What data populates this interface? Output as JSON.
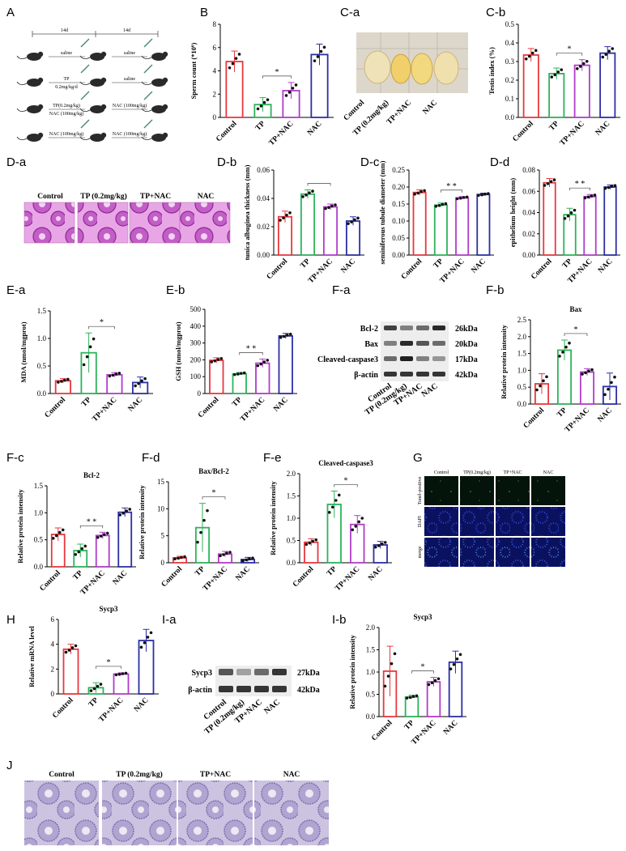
{
  "panels": {
    "A": "A",
    "B": "B",
    "Ca": "C-a",
    "Cb": "C-b",
    "Da": "D-a",
    "Db": "D-b",
    "Dc": "D-c",
    "Dd": "D-d",
    "Ea": "E-a",
    "Eb": "E-b",
    "Fa": "F-a",
    "Fb": "F-b",
    "Fc": "F-c",
    "Fd": "F-d",
    "Fe": "F-e",
    "G": "G",
    "H": "H",
    "Ia": "I-a",
    "Ib": "I-b",
    "J": "J"
  },
  "schematic": {
    "top_labels": [
      "14d",
      "14d"
    ],
    "rows": [
      {
        "left": "saline",
        "right": "saline"
      },
      {
        "left": "TP",
        "left2": "0.2mg/kg/d",
        "right": "saline"
      },
      {
        "left": "TP(0.2mg/kg)",
        "left2": "NAC (100mg/kg)",
        "right": "NAC (100mg/kg)"
      },
      {
        "left": "NAC (100mg/kg)",
        "right": "NAC (100mg/kg)"
      }
    ]
  },
  "colors": {
    "control": "#e8383d",
    "tp": "#2db35a",
    "tpnac": "#b03cc9",
    "nac": "#2b2fa3",
    "he": "#c05fc0",
    "ihc": "#b9b0d8",
    "dapi": "#1a2aa0"
  },
  "testis_labels": [
    "Control",
    "TP (0.2mg/kg)",
    "TP+NAC",
    "NAC"
  ],
  "he_labels": [
    "Control",
    "TP (0.2mg/kg)",
    "TP+NAC",
    "NAC"
  ],
  "western_F": {
    "bands": [
      "Bcl-2",
      "Bax",
      "Cleaved-caspase3",
      "β-actin"
    ],
    "kda": [
      "26kDa",
      "20kDa",
      "17kDa",
      "42kDa"
    ],
    "lanes": [
      "Control",
      "TP (0.2mg/kg)",
      "TP+NAC",
      "NAC"
    ]
  },
  "western_I": {
    "bands": [
      "Sycp3",
      "β-actin"
    ],
    "kda": [
      "27kDa",
      "42kDa"
    ],
    "lanes": [
      "Control",
      "TP (0.2mg/kg)",
      "TP+NAC",
      "NAC"
    ]
  },
  "tunel": {
    "cols": [
      "Control",
      "TP(0.2mg/kg)",
      "TP+NAC",
      "NAC"
    ],
    "rows": [
      "Tunel-positive",
      "DAPI",
      "merge"
    ]
  },
  "ihc_labels": [
    "Control",
    "TP (0.2mg/kg)",
    "TP+NAC",
    "NAC"
  ],
  "chart_data": [
    {
      "id": "B",
      "type": "bar",
      "categories": [
        "Control",
        "TP",
        "TP+NAC",
        "NAC"
      ],
      "values": [
        4.8,
        1.1,
        2.3,
        5.4
      ],
      "errors": [
        0.9,
        0.6,
        0.7,
        0.9
      ],
      "ylabel": "Sperm count (*10⁶)",
      "ylim": [
        0,
        8
      ],
      "yticks": [
        "0",
        "2",
        "4",
        "6",
        "8"
      ],
      "sig": "*",
      "title": ""
    },
    {
      "id": "Cb",
      "type": "bar",
      "categories": [
        "Control",
        "TP",
        "TP+NAC",
        "NAC"
      ],
      "values": [
        0.335,
        0.235,
        0.28,
        0.345
      ],
      "errors": [
        0.035,
        0.03,
        0.03,
        0.035
      ],
      "ylabel": "Testis index (%)",
      "ylim": [
        0,
        0.5
      ],
      "yticks": [
        "0.0",
        "0.1",
        "0.2",
        "0.3",
        "0.4",
        "0.5"
      ],
      "sig": "*",
      "title": ""
    },
    {
      "id": "Db",
      "type": "bar",
      "categories": [
        "Control",
        "TP",
        "TP+NAC",
        "NAC"
      ],
      "values": [
        0.027,
        0.043,
        0.034,
        0.024
      ],
      "errors": [
        0.004,
        0.003,
        0.002,
        0.003
      ],
      "ylabel": "tunica albuginea thickness (mm)",
      "ylim": [
        0,
        0.06
      ],
      "yticks": [
        "0.00",
        "0.02",
        "0.04",
        "0.06"
      ],
      "sig": "",
      "title": ""
    },
    {
      "id": "Dc",
      "type": "bar",
      "categories": [
        "Control",
        "TP",
        "TP+NAC",
        "NAC"
      ],
      "values": [
        0.184,
        0.147,
        0.168,
        0.178
      ],
      "errors": [
        0.008,
        0.006,
        0.004,
        0.004
      ],
      "ylabel": "seminiferous tubule diameter (mm)",
      "ylim": [
        0,
        0.25
      ],
      "yticks": [
        "0.00",
        "0.05",
        "0.10",
        "0.15",
        "0.20",
        "0.25"
      ],
      "sig": "* *",
      "title": ""
    },
    {
      "id": "Dd",
      "type": "bar",
      "categories": [
        "Control",
        "TP",
        "TP+NAC",
        "NAC"
      ],
      "values": [
        0.068,
        0.038,
        0.055,
        0.064
      ],
      "errors": [
        0.004,
        0.006,
        0.002,
        0.002
      ],
      "ylabel": "epithelium height (mm)",
      "ylim": [
        0,
        0.08
      ],
      "yticks": [
        "0.00",
        "0.02",
        "0.04",
        "0.06",
        "0.08"
      ],
      "sig": "* *",
      "title": ""
    },
    {
      "id": "Ea",
      "type": "bar",
      "categories": [
        "Control",
        "TP",
        "TP+NAC",
        "NAC"
      ],
      "values": [
        0.23,
        0.74,
        0.34,
        0.2
      ],
      "errors": [
        0.04,
        0.36,
        0.04,
        0.1
      ],
      "ylabel": "MDA (nmol/mgprot)",
      "ylim": [
        0,
        1.5
      ],
      "yticks": [
        "0.0",
        "0.5",
        "1.0",
        "1.5"
      ],
      "sig": "*",
      "title": ""
    },
    {
      "id": "Eb",
      "type": "bar",
      "categories": [
        "Control",
        "TP",
        "TP+NAC",
        "NAC"
      ],
      "values": [
        197,
        117,
        180,
        342
      ],
      "errors": [
        15,
        8,
        25,
        15
      ],
      "ylabel": "GSH (nmol/mgprot)",
      "ylim": [
        0,
        500
      ],
      "yticks": [
        "0",
        "100",
        "200",
        "300",
        "400",
        "500"
      ],
      "sig": "* *",
      "title": ""
    },
    {
      "id": "Fb",
      "type": "bar",
      "categories": [
        "Control",
        "TP",
        "TP+NAC",
        "NAC"
      ],
      "values": [
        0.6,
        1.6,
        0.95,
        0.52
      ],
      "errors": [
        0.3,
        0.3,
        0.1,
        0.4
      ],
      "ylabel": "Relative protein intensity",
      "ylim": [
        0,
        2.5
      ],
      "yticks": [
        "0.0",
        "0.5",
        "1.0",
        "1.5",
        "2.0",
        "2.5"
      ],
      "sig": "*",
      "title": "Bax"
    },
    {
      "id": "Fc",
      "type": "bar",
      "categories": [
        "Control",
        "TP",
        "TP+NAC",
        "NAC"
      ],
      "values": [
        0.6,
        0.3,
        0.58,
        1.01
      ],
      "errors": [
        0.12,
        0.12,
        0.06,
        0.08
      ],
      "ylabel": "Relative protein intensity",
      "ylim": [
        0,
        1.5
      ],
      "yticks": [
        "0.0",
        "0.5",
        "1.0",
        "1.5"
      ],
      "sig": "* *",
      "title": "Bcl-2"
    },
    {
      "id": "Fd",
      "type": "bar",
      "categories": [
        "Control",
        "TP",
        "TP+NAC",
        "NAC"
      ],
      "values": [
        0.9,
        6.5,
        1.6,
        0.6
      ],
      "errors": [
        0.3,
        4.5,
        0.5,
        0.4
      ],
      "ylabel": "Relative protein intensity",
      "ylim": [
        0,
        15
      ],
      "yticks": [
        "0",
        "5",
        "10",
        "15"
      ],
      "sig": "*",
      "title": "Bax/Bcl-2"
    },
    {
      "id": "Fe",
      "type": "bar",
      "categories": [
        "Control",
        "TP",
        "TP+NAC",
        "NAC"
      ],
      "values": [
        0.46,
        1.31,
        0.86,
        0.4
      ],
      "errors": [
        0.08,
        0.3,
        0.2,
        0.08
      ],
      "ylabel": "Relative protein intensity",
      "ylim": [
        0,
        2.0
      ],
      "yticks": [
        "0.0",
        "0.5",
        "1.0",
        "1.5",
        "2.0"
      ],
      "sig": "*",
      "title": "Cleaved-caspase3"
    },
    {
      "id": "H",
      "type": "bar",
      "categories": [
        "Control",
        "TP",
        "TP+NAC",
        "NAC"
      ],
      "values": [
        3.6,
        0.5,
        1.6,
        4.3
      ],
      "errors": [
        0.4,
        0.4,
        0.1,
        0.9
      ],
      "ylabel": "Relative mRNA level",
      "ylim": [
        0,
        6
      ],
      "yticks": [
        "0",
        "2",
        "4",
        "6"
      ],
      "sig": "*",
      "title": "Sycp3"
    },
    {
      "id": "Ib",
      "type": "bar",
      "categories": [
        "Control",
        "TP",
        "TP+NAC",
        "NAC"
      ],
      "values": [
        1.02,
        0.44,
        0.78,
        1.22
      ],
      "errors": [
        0.56,
        0.04,
        0.1,
        0.25
      ],
      "ylabel": "Relative protein intensity",
      "ylim": [
        0,
        2.0
      ],
      "yticks": [
        "0.0",
        "0.5",
        "1.0",
        "1.5",
        "2.0"
      ],
      "sig": "*",
      "title": "Sycp3"
    }
  ]
}
